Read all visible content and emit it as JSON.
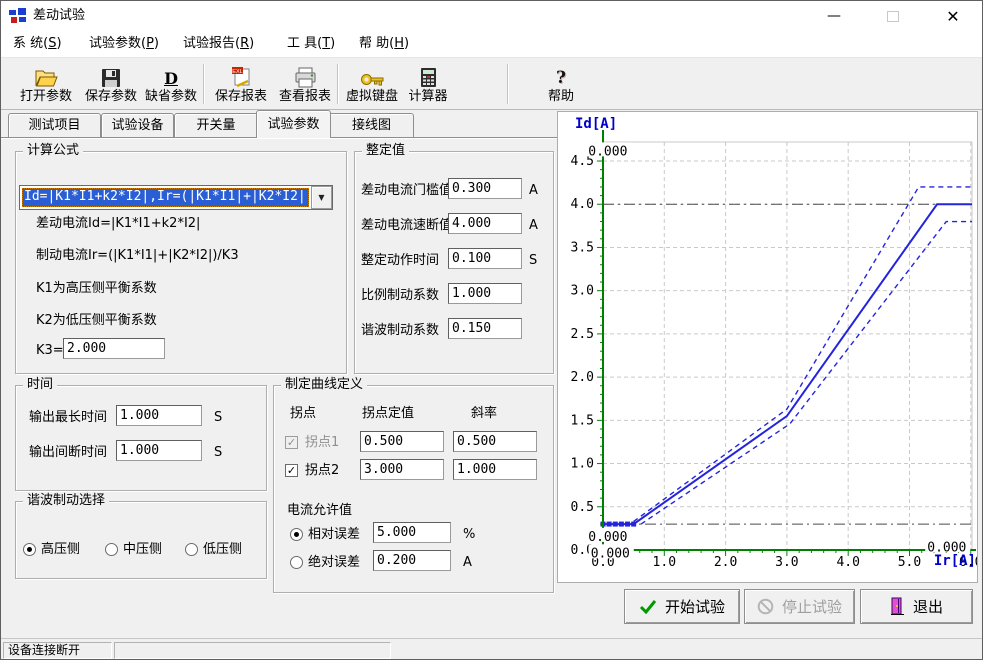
{
  "window": {
    "title": "差动试验"
  },
  "icons": {
    "minimize": "—",
    "close": "✕",
    "dropdown_arrow": "▼"
  },
  "menu": {
    "items": [
      "系 统(S)",
      "试验参数(P)",
      "试验报告(R)",
      "工 具(T)",
      "帮 助(H)"
    ]
  },
  "toolbar": {
    "buttons": [
      {
        "label": "打开参数",
        "icon": "folder-open-icon"
      },
      {
        "label": "保存参数",
        "icon": "floppy-disk-icon"
      },
      {
        "label": "缺省参数",
        "icon": "default-params-d-icon"
      },
      {
        "label": "保存报表",
        "icon": "save-report-excel-icon"
      },
      {
        "label": "查看报表",
        "icon": "print-preview-icon"
      },
      {
        "label": "虚拟键盘",
        "icon": "virtual-keyboard-key-icon"
      },
      {
        "label": "计算器",
        "icon": "calculator-icon"
      },
      {
        "label": "帮助",
        "icon": "help-question-icon"
      }
    ]
  },
  "tabs": {
    "items": [
      "测试项目",
      "试验设备",
      "开关量",
      "试验参数",
      "接线图"
    ],
    "active_index": 3
  },
  "formula": {
    "title": "计算公式",
    "selected_formula": "Id=|K1*I1+k2*I2|,Ir=(|K1*I1|+|K2*I2|",
    "lines": [
      "差动电流Id=|K1*I1+k2*I2|",
      "制动电流Ir=(|K1*I1|+|K2*I2|)/K3",
      "K1为高压侧平衡系数",
      "K2为低压侧平衡系数"
    ],
    "k3_label": "K3=",
    "k3_value": "2.000"
  },
  "settings": {
    "title": "整定值",
    "rows": [
      {
        "label": "差动电流门槛值",
        "value": "0.300",
        "unit": "A"
      },
      {
        "label": "差动电流速断值",
        "value": "4.000",
        "unit": "A"
      },
      {
        "label": "整定动作时间",
        "value": "0.100",
        "unit": "S"
      },
      {
        "label": "比例制动系数",
        "value": "1.000",
        "unit": ""
      },
      {
        "label": "谐波制动系数",
        "value": "0.150",
        "unit": ""
      }
    ]
  },
  "time": {
    "title": "时间",
    "rows": [
      {
        "label": "输出最长时间",
        "value": "1.000",
        "unit": "S"
      },
      {
        "label": "输出间断时间",
        "value": "1.000",
        "unit": "S"
      }
    ]
  },
  "curve": {
    "title": "制定曲线定义",
    "headers": [
      "拐点",
      "拐点定值",
      "斜率"
    ],
    "rows": [
      {
        "label": "拐点1",
        "checked": true,
        "enabled": false,
        "setpoint": "0.500",
        "slope": "0.500"
      },
      {
        "label": "拐点2",
        "checked": true,
        "enabled": true,
        "setpoint": "3.000",
        "slope": "1.000"
      }
    ],
    "tolerance": {
      "title": "电流允许值",
      "options": [
        {
          "label": "相对误差",
          "value": "5.000",
          "unit": "%",
          "selected": true
        },
        {
          "label": "绝对误差",
          "value": "0.200",
          "unit": "A",
          "selected": false
        }
      ]
    }
  },
  "harmonic": {
    "title": "谐波制动选择",
    "options": [
      {
        "label": "高压侧",
        "selected": true
      },
      {
        "label": "中压侧",
        "selected": false
      },
      {
        "label": "低压侧",
        "selected": false
      }
    ]
  },
  "actions": {
    "start": "开始试验",
    "stop": "停止试验",
    "stop_disabled": true,
    "exit": "退出"
  },
  "status": {
    "text": "设备连接断开"
  },
  "chart_data": {
    "type": "line",
    "title": "",
    "xlabel": "Ir[A]",
    "ylabel": "Id[A]",
    "xlim": [
      0,
      6.02
    ],
    "ylim": [
      0,
      4.72
    ],
    "x_ticks": [
      0,
      1,
      2,
      3,
      4,
      5,
      6
    ],
    "y_ticks": [
      0,
      0.5,
      1,
      1.5,
      2,
      2.5,
      3,
      3.5,
      4,
      4.5
    ],
    "grid": true,
    "legend": "none",
    "axis_color": "#008000",
    "grid_color": "#c9c9c9",
    "series_color": "#2424dd",
    "reference_line_color": "#4a4a4a",
    "reference_lines": [
      {
        "value": 0.3,
        "style": "dash-dot"
      },
      {
        "value": 4.0,
        "style": "dash-dot"
      }
    ],
    "series": [
      {
        "style": "solid",
        "points": [
          [
            0,
            0.3
          ],
          [
            0.5,
            0.3
          ],
          [
            3.0,
            1.55
          ],
          [
            5.45,
            4.0
          ],
          [
            6.02,
            4.0
          ]
        ]
      },
      {
        "style": "dashed",
        "points": [
          [
            0.5,
            0.33
          ],
          [
            3.0,
            1.63
          ],
          [
            5.15,
            4.2
          ],
          [
            6.02,
            4.2
          ]
        ]
      },
      {
        "style": "dashed",
        "points": [
          [
            0.62,
            0.3
          ],
          [
            3.05,
            1.46
          ],
          [
            5.6,
            3.8
          ],
          [
            6.02,
            3.8
          ]
        ]
      }
    ],
    "markers": [
      [
        0,
        0.3
      ],
      [
        0.1,
        0.3
      ],
      [
        0.2,
        0.3
      ],
      [
        0.3,
        0.3
      ],
      [
        0.4,
        0.3
      ],
      [
        0.5,
        0.3
      ]
    ],
    "annotations": [
      {
        "text": "0.000",
        "x": -0.24,
        "y": 4.6
      },
      {
        "text": "0.000",
        "x": -0.24,
        "y": 0.14
      },
      {
        "text": "0.000",
        "x": -0.2,
        "y": -0.05
      },
      {
        "text": "0.000",
        "x": 5.29,
        "y": 0.02
      }
    ]
  }
}
